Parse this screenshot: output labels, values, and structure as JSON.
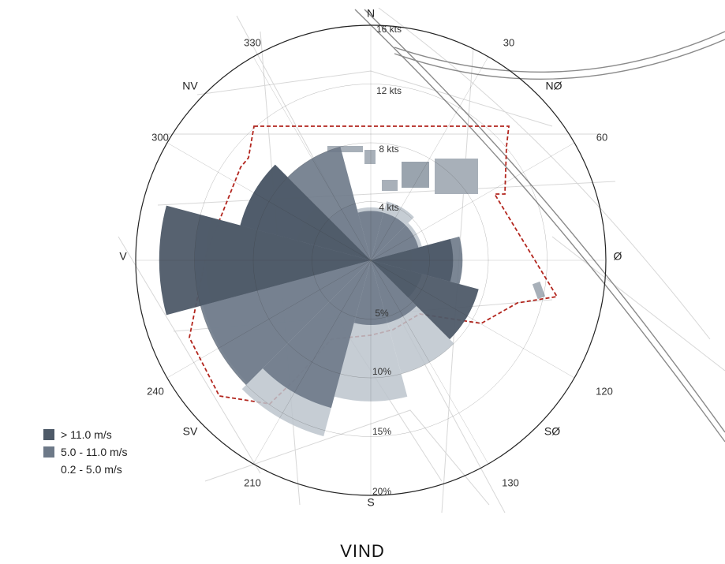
{
  "chart_data": {
    "type": "polar_bar",
    "title": "VIND",
    "direction_labels": [
      "N",
      "NØ",
      "Ø",
      "SØ",
      "S",
      "SV",
      "V",
      "NV"
    ],
    "angle_labels": [
      "30",
      "60",
      "120",
      "130",
      "210",
      "240",
      "300",
      "330"
    ],
    "speed_ring_labels": [
      "4 kts",
      "8 kts",
      "12 kts",
      "16 kts"
    ],
    "percent_ring_labels": [
      "5%",
      "10%",
      "15%",
      "20%"
    ],
    "sector_width_deg": 30,
    "series": [
      {
        "name": "0.2 - 5.0 m/s",
        "color": "#bcc4cd",
        "values": [
          {
            "dir": 0,
            "pct": 4.5
          },
          {
            "dir": 30,
            "pct": 5.2
          },
          {
            "dir": 60,
            "pct": 4.5
          },
          {
            "dir": 90,
            "pct": 3.5
          },
          {
            "dir": 120,
            "pct": 4.5
          },
          {
            "dir": 150,
            "pct": 10.0
          },
          {
            "dir": 180,
            "pct": 12.0
          },
          {
            "dir": 210,
            "pct": 15.5
          },
          {
            "dir": 240,
            "pct": 14.8
          },
          {
            "dir": 270,
            "pct": 14.0
          },
          {
            "dir": 300,
            "pct": 6.5
          },
          {
            "dir": 330,
            "pct": 5.0
          }
        ]
      },
      {
        "name": "5.0 - 11.0 m/s",
        "color": "#6d7988",
        "values": [
          {
            "dir": 0,
            "pct": 4.2
          },
          {
            "dir": 30,
            "pct": 4.2
          },
          {
            "dir": 60,
            "pct": 4.2
          },
          {
            "dir": 90,
            "pct": 7.8
          },
          {
            "dir": 120,
            "pct": 4.5
          },
          {
            "dir": 150,
            "pct": 5.5
          },
          {
            "dir": 180,
            "pct": 5.5
          },
          {
            "dir": 210,
            "pct": 13.0
          },
          {
            "dir": 240,
            "pct": 15.0
          },
          {
            "dir": 270,
            "pct": 15.0
          },
          {
            "dir": 300,
            "pct": 11.5
          },
          {
            "dir": 330,
            "pct": 10.0
          }
        ]
      },
      {
        "name": "> 11.0 m/s",
        "color": "#4e5a68",
        "values": [
          {
            "dir": 0,
            "pct": 0
          },
          {
            "dir": 30,
            "pct": 0
          },
          {
            "dir": 60,
            "pct": 0
          },
          {
            "dir": 90,
            "pct": 7.0
          },
          {
            "dir": 120,
            "pct": 9.5
          },
          {
            "dir": 150,
            "pct": 0
          },
          {
            "dir": 180,
            "pct": 0
          },
          {
            "dir": 210,
            "pct": 0
          },
          {
            "dir": 240,
            "pct": 0
          },
          {
            "dir": 270,
            "pct": 18.0
          },
          {
            "dir": 300,
            "pct": 11.5
          },
          {
            "dir": 330,
            "pct": 0
          }
        ]
      }
    ],
    "legend": [
      "> 11.0 m/s",
      "5.0 - 11.0 m/s",
      "0.2 - 5.0 m/s"
    ],
    "legend_placement": "bottom-left",
    "max_pct": 20
  },
  "colors": {
    "map_lines": "#c9c9c9",
    "boundary": "#b3261e",
    "ring": "#333333"
  }
}
